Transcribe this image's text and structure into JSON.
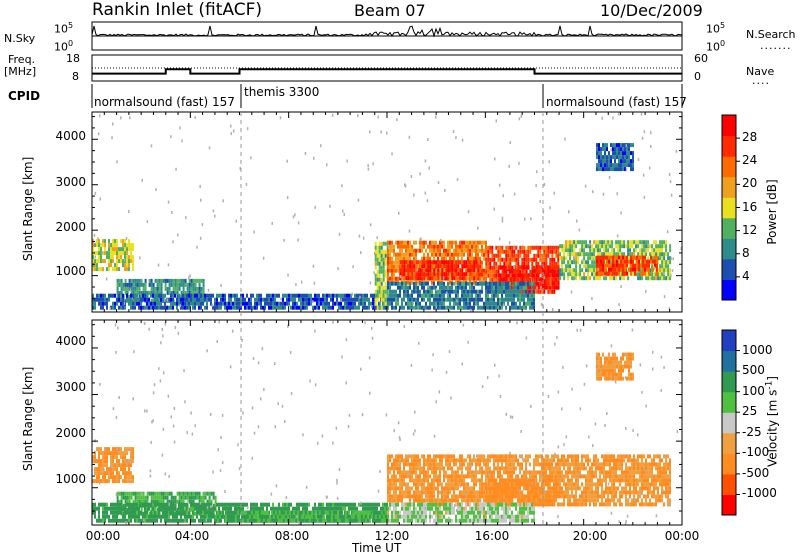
{
  "header": {
    "station": "Rankin Inlet (fitACF)",
    "beam": "Beam 07",
    "date": "10/Dec/2009"
  },
  "noise_panel": {
    "left_label": "N.Sky",
    "right_label": "N.Search",
    "ytick_top": "10^5",
    "ytick_bottom": "10^0"
  },
  "freq_panel": {
    "label_line1": "Freq.",
    "label_line2": "[MHz]",
    "left_ticks": [
      "18",
      "8"
    ],
    "right_ticks": [
      "60",
      "0"
    ],
    "right_label": "Nave",
    "freq_steps": [
      {
        "t0": 0,
        "t1": 3,
        "f": 10
      },
      {
        "t0": 3,
        "t1": 4,
        "f": 12
      },
      {
        "t0": 4,
        "t1": 6,
        "f": 10
      },
      {
        "t0": 6,
        "t1": 18,
        "f": 12
      },
      {
        "t0": 18,
        "t1": 24,
        "f": 10
      }
    ]
  },
  "cpid": {
    "label": "CPID",
    "segments": [
      {
        "text": "normalsound (fast) 157",
        "t0": 0,
        "t1": 6
      },
      {
        "text": "themis 3300",
        "t0": 6,
        "t1": 18
      },
      {
        "text": "normalsound (fast) 157",
        "t0": 18,
        "t1": 24
      }
    ]
  },
  "chart_data": [
    {
      "type": "heatmap",
      "title": "",
      "xlabel": "",
      "ylabel": "Slant Range [km]",
      "xlim": [
        0,
        24
      ],
      "ylim": [
        200,
        4600
      ],
      "yticks": [
        1000,
        2000,
        3000,
        4000
      ],
      "colorbar": {
        "label": "Power [dB]",
        "ticks": [
          "28",
          "24",
          "20",
          "16",
          "12",
          "8",
          "4"
        ],
        "colors": [
          "#0000ff",
          "#1c4fb0",
          "#2f8a8a",
          "#4fb060",
          "#e8e020",
          "#f0a020",
          "#ff6a00",
          "#ff2a00",
          "#ff0000"
        ]
      },
      "regions": [
        {
          "t0": 0.0,
          "t1": 1.7,
          "r0": 1100,
          "r1": 1800,
          "v": 16
        },
        {
          "t0": 1.0,
          "t1": 4.5,
          "r0": 400,
          "r1": 900,
          "v": 10
        },
        {
          "t0": 0.0,
          "t1": 12.0,
          "r0": 250,
          "r1": 600,
          "v": 6
        },
        {
          "t0": 11.5,
          "t1": 12.0,
          "r0": 250,
          "r1": 1700,
          "v": 14
        },
        {
          "t0": 12.0,
          "t1": 16.0,
          "r0": 800,
          "r1": 1700,
          "v": 22
        },
        {
          "t0": 12.5,
          "t1": 15.8,
          "r0": 900,
          "r1": 1300,
          "v": 28
        },
        {
          "t0": 16.0,
          "t1": 19.0,
          "r0": 600,
          "r1": 1600,
          "v": 26
        },
        {
          "t0": 16.5,
          "t1": 19.0,
          "r0": 700,
          "r1": 1200,
          "v": 29
        },
        {
          "t0": 19.0,
          "t1": 23.5,
          "r0": 900,
          "r1": 1700,
          "v": 14
        },
        {
          "t0": 20.5,
          "t1": 23.0,
          "r0": 1000,
          "r1": 1400,
          "v": 26
        },
        {
          "t0": 12.0,
          "t1": 18.0,
          "r0": 250,
          "r1": 800,
          "v": 8
        },
        {
          "t0": 20.5,
          "t1": 22.0,
          "r0": 3300,
          "r1": 3900,
          "v": 6
        }
      ]
    },
    {
      "type": "heatmap",
      "title": "",
      "xlabel": "Time UT",
      "ylabel": "Slant Range [km]",
      "xlim": [
        0,
        24
      ],
      "ylim": [
        200,
        4600
      ],
      "yticks": [
        1000,
        2000,
        3000,
        4000
      ],
      "xticks": [
        "00:00",
        "04:00",
        "08:00",
        "12:00",
        "16:00",
        "20:00",
        "00:00"
      ],
      "colorbar": {
        "label": "Velocity [m s^-1]",
        "ticks": [
          "1000",
          "500",
          "100",
          "25",
          "-25",
          "-100",
          "-500",
          "-1000"
        ],
        "colors": [
          "#ff0000",
          "#ff5000",
          "#ff8c20",
          "#f0a040",
          "#c8c8c8",
          "#50c040",
          "#2f9a50",
          "#2070a0",
          "#2040c0"
        ]
      },
      "regions": [
        {
          "t0": 0.0,
          "t1": 1.7,
          "r0": 1100,
          "r1": 1800,
          "v": -100
        },
        {
          "t0": 1.0,
          "t1": 5.0,
          "r0": 400,
          "r1": 900,
          "v": 100
        },
        {
          "t0": 0.0,
          "t1": 12.0,
          "r0": 250,
          "r1": 600,
          "v": 150
        },
        {
          "t0": 12.0,
          "t1": 23.5,
          "r0": 600,
          "r1": 1700,
          "v": -100
        },
        {
          "t0": 16.0,
          "t1": 19.0,
          "r0": 600,
          "r1": 1200,
          "v": -200
        },
        {
          "t0": 5.0,
          "t1": 12.0,
          "r0": 250,
          "r1": 450,
          "v": 100
        },
        {
          "t0": 12.0,
          "t1": 18.0,
          "r0": 250,
          "r1": 600,
          "v": 30
        },
        {
          "t0": 20.5,
          "t1": 22.0,
          "r0": 3300,
          "r1": 3900,
          "v": -100
        }
      ]
    }
  ]
}
